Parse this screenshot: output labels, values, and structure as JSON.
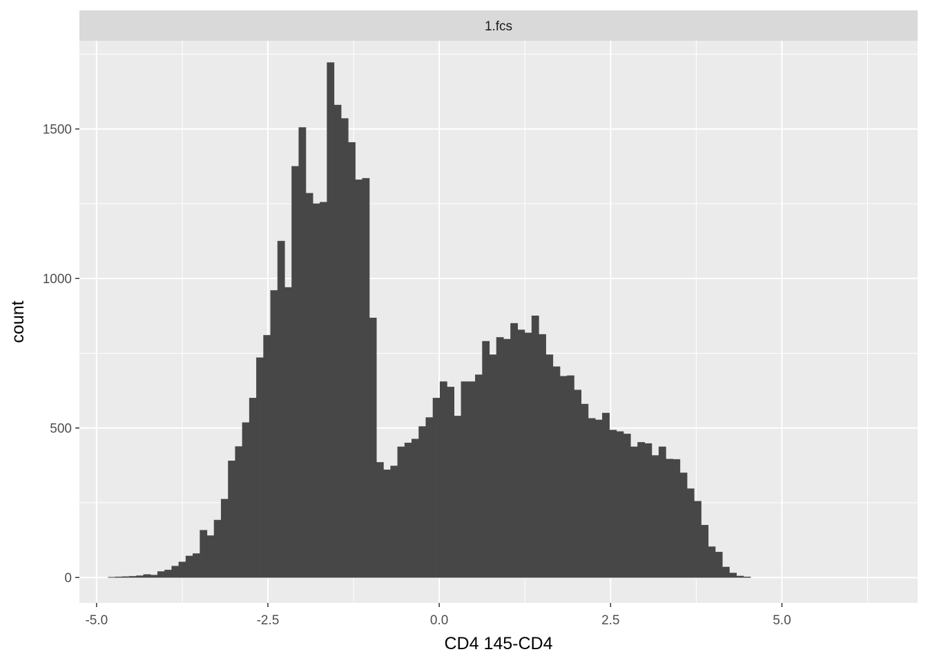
{
  "chart_data": {
    "type": "bar",
    "subtype": "histogram",
    "facet_label": "1.fcs",
    "xlabel": "CD4 145-CD4",
    "ylabel": "count",
    "xlim": [
      -5.25,
      6.98
    ],
    "ylim": [
      -85,
      1795
    ],
    "x_ticks": [
      {
        "value": -5.0,
        "label": "-5.0"
      },
      {
        "value": -2.5,
        "label": "-2.5"
      },
      {
        "value": 0.0,
        "label": "0.0"
      },
      {
        "value": 2.5,
        "label": "2.5"
      },
      {
        "value": 5.0,
        "label": "5.0"
      }
    ],
    "y_ticks": [
      {
        "value": 0,
        "label": "0"
      },
      {
        "value": 500,
        "label": "500"
      },
      {
        "value": 1000,
        "label": "1000"
      },
      {
        "value": 1500,
        "label": "1500"
      }
    ],
    "grid": true,
    "bin_width": 0.103,
    "bin_start": -4.83,
    "bar_color": "#474747",
    "panel_color": "#ebebeb",
    "strip_color": "#d9d9d9",
    "grid_color": "#ffffff",
    "values": [
      1,
      2,
      3,
      4,
      6,
      10,
      8,
      20,
      25,
      38,
      52,
      72,
      80,
      158,
      140,
      192,
      262,
      390,
      438,
      518,
      600,
      735,
      810,
      960,
      1125,
      970,
      1375,
      1505,
      1285,
      1250,
      1255,
      1722,
      1580,
      1535,
      1455,
      1330,
      1335,
      868,
      385,
      360,
      373,
      437,
      450,
      463,
      505,
      535,
      600,
      655,
      637,
      540,
      655,
      655,
      678,
      790,
      745,
      803,
      797,
      850,
      828,
      818,
      875,
      813,
      745,
      705,
      673,
      675,
      627,
      580,
      532,
      527,
      550,
      493,
      488,
      480,
      437,
      452,
      448,
      408,
      437,
      396,
      395,
      350,
      297,
      255,
      175,
      103,
      85,
      35,
      15,
      5,
      2
    ]
  }
}
